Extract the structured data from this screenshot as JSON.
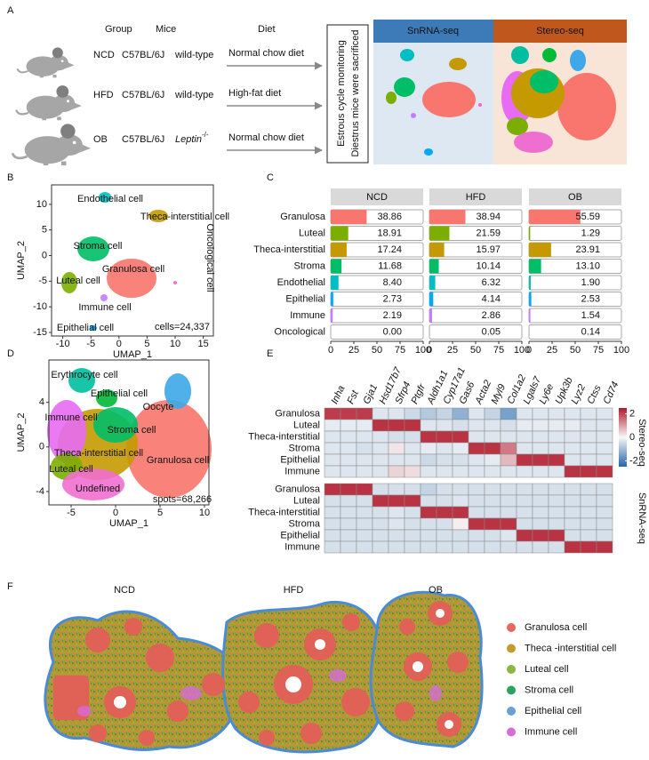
{
  "panel_labels": [
    "A",
    "B",
    "C",
    "D",
    "E",
    "F"
  ],
  "panel_a": {
    "headers": [
      "Group",
      "Mice",
      "Diet"
    ],
    "rows": [
      {
        "group": "NCD",
        "strain": "C57BL/6J",
        "genotype": "wild-type",
        "diet": "Normal chow diet"
      },
      {
        "group": "HFD",
        "strain": "C57BL/6J",
        "genotype": "wild-type",
        "diet": "High-fat diet"
      },
      {
        "group": "OB",
        "strain": "C57BL/6J",
        "genotype": "Leptin",
        "genotype_superscript": "-/-",
        "diet": "Normal chow diet"
      }
    ],
    "box_text": [
      "Estrous cycle monitoring",
      "Diestrus mice were sacrificed"
    ],
    "methods": [
      "SnRNA-seq",
      "Stereo-seq"
    ]
  },
  "chart_data": [
    {
      "type": "scatter",
      "x_label": "UMAP_1",
      "y_label": "UMAP_2",
      "xlim": [
        -12,
        16.8
      ],
      "ylim": [
        -15.7,
        13.8
      ],
      "xticks": [
        -10,
        -5,
        0,
        5,
        10,
        15
      ],
      "yticks": [
        10,
        5,
        0,
        -5,
        -10,
        -15
      ],
      "cluster_labels": [
        "Endothelial cell",
        "Theca-interstitial cell",
        "Stroma cell",
        "Granulosa cell",
        "Luteal cell",
        "Immune cell",
        "Epithelial cell"
      ],
      "side_label": "Oncological cell",
      "annotation": "cells=24,337"
    },
    {
      "type": "bar",
      "orientation": "horizontal",
      "categories": [
        "Granulosa",
        "Luteal",
        "Theca-interstitial",
        "Stroma",
        "Endothelial",
        "Epithelial",
        "Immune",
        "Oncological"
      ],
      "colors": [
        "#f8766d",
        "#7cae00",
        "#c49a00",
        "#00be67",
        "#00bfc4",
        "#00a9ff",
        "#c77cff",
        "#ff61c3"
      ],
      "series": [
        {
          "name": "NCD",
          "values": [
            38.86,
            18.91,
            17.24,
            11.68,
            8.4,
            2.73,
            2.19,
            0
          ],
          "value_labels": [
            "38.86",
            "18.91",
            "17.24",
            "11.68",
            "8.40",
            "2.73",
            "2.19",
            "0.00"
          ]
        },
        {
          "name": "HFD",
          "values": [
            38.94,
            21.59,
            15.97,
            10.14,
            6.32,
            4.14,
            2.86,
            0.05
          ],
          "value_labels": [
            "38.94",
            "21.59",
            "15.97",
            "10.14",
            "6.32",
            "4.14",
            "2.86",
            "0.05"
          ]
        },
        {
          "name": "OB",
          "values": [
            55.59,
            1.29,
            23.91,
            13.1,
            1.9,
            2.53,
            1.54,
            0.14
          ],
          "value_labels": [
            "55.59",
            "1.29",
            "23.91",
            "13.10",
            "1.90",
            "2.53",
            "1.54",
            "0.14"
          ]
        }
      ],
      "xlim": [
        0,
        100
      ],
      "xticks": [
        0,
        25,
        50,
        75,
        100
      ]
    },
    {
      "type": "scatter",
      "x_label": "UMAP_1",
      "y_label": "UMAP_2",
      "xlim": [
        -7.5,
        10.5
      ],
      "ylim": [
        -5.2,
        7.8
      ],
      "xticks": [
        -5,
        0,
        5,
        10
      ],
      "yticks": [
        4,
        0,
        -4
      ],
      "cluster_labels": [
        "Erythrocyte cell",
        "Epithelial cell",
        "Oocyte",
        "Immune cell",
        "Stroma cell",
        "Theca-interstitial cell",
        "Luteal cell",
        "Granulosa cell",
        "Undefined"
      ],
      "annotation": "spots=68,266"
    },
    {
      "type": "heatmap",
      "columns": [
        "Inha",
        "Fst",
        "Gja1",
        "Hsd17b7",
        "Sfrp4",
        "Ptgfr",
        "Aldh1a1",
        "Cyp17a1",
        "Gas6",
        "Acta2",
        "Myl9",
        "Col1a2",
        "Lgals7",
        "Ly6e",
        "Upk3b",
        "Lyz2",
        "Ctss",
        "Cd74"
      ],
      "groups": [
        {
          "name": "Stereo-seq",
          "rows": [
            "Granulosa",
            "Luteal",
            "Theca-interstitial",
            "Stroma",
            "Epithelial",
            "Immune"
          ],
          "values": [
            [
              2.1,
              2.1,
              2.1,
              -0.3,
              -0.3,
              -0.5,
              -0.8,
              -0.6,
              -1.2,
              -0.3,
              -0.6,
              -1.5,
              -0.3,
              -0.3,
              -0.3,
              -0.3,
              -0.3,
              -0.3
            ],
            [
              -0.2,
              -0.2,
              -0.2,
              2.2,
              2.2,
              2.2,
              -0.3,
              -0.3,
              -0.4,
              -0.3,
              -0.3,
              -0.4,
              -0.2,
              -0.2,
              -0.2,
              -0.2,
              -0.3,
              -0.3
            ],
            [
              -0.3,
              -0.3,
              -0.3,
              -0.3,
              -0.4,
              -0.4,
              2.2,
              2.2,
              2.2,
              -0.3,
              -0.3,
              -0.3,
              -0.3,
              -0.3,
              -0.3,
              -0.3,
              -0.3,
              -0.3
            ],
            [
              -0.3,
              -0.3,
              -0.4,
              -0.3,
              0.2,
              -0.3,
              -0.2,
              -0.3,
              -0.2,
              2.2,
              2.2,
              1.4,
              -0.3,
              -0.3,
              -0.3,
              -0.3,
              -0.3,
              -0.3
            ],
            [
              -0.3,
              -0.3,
              -0.3,
              -0.3,
              -0.3,
              -0.3,
              -0.5,
              -0.4,
              -0.4,
              -0.3,
              -0.2,
              0.7,
              2.2,
              2.2,
              2.2,
              -0.3,
              -0.3,
              -0.3
            ],
            [
              -0.3,
              -0.3,
              -0.3,
              -0.3,
              0.4,
              0.3,
              -0.3,
              -0.3,
              -0.3,
              -0.3,
              -0.3,
              -0.3,
              -0.3,
              -0.3,
              -0.3,
              2.2,
              2.2,
              2.2
            ]
          ]
        },
        {
          "name": "SnRNA-seq",
          "rows": [
            "Granulosa",
            "Luteal",
            "Theca-interstitial",
            "Stroma",
            "Epithelial",
            "Immune"
          ],
          "values": [
            [
              2.2,
              2.2,
              2.2,
              -0.4,
              -0.4,
              -0.4,
              -0.6,
              -0.4,
              -0.4,
              -0.4,
              -0.4,
              -0.4,
              -0.4,
              -0.4,
              -0.4,
              -0.4,
              -0.4,
              -0.4
            ],
            [
              -0.4,
              -0.4,
              -0.4,
              2.2,
              2.2,
              2.2,
              -0.4,
              -0.4,
              -0.3,
              -0.4,
              -0.4,
              -0.4,
              -0.4,
              -0.4,
              -0.4,
              -0.4,
              -0.4,
              -0.4
            ],
            [
              -0.4,
              -0.4,
              -0.4,
              -0.4,
              -0.3,
              -0.4,
              2.2,
              2.2,
              2.2,
              -0.4,
              -0.4,
              -0.4,
              -0.4,
              -0.4,
              -0.4,
              -0.4,
              -0.4,
              -0.4
            ],
            [
              -0.4,
              -0.4,
              -0.4,
              -0.4,
              -0.3,
              -0.4,
              -0.4,
              -0.4,
              0.1,
              2.2,
              2.2,
              2.2,
              -0.4,
              -0.4,
              -0.4,
              -0.4,
              -0.4,
              -0.4
            ],
            [
              -0.4,
              -0.4,
              -0.4,
              -0.4,
              -0.4,
              -0.4,
              -0.4,
              -0.4,
              -0.4,
              -0.4,
              -0.4,
              -0.3,
              2.2,
              2.2,
              2.2,
              -0.4,
              -0.4,
              -0.4
            ],
            [
              -0.4,
              -0.4,
              -0.4,
              -0.4,
              -0.4,
              -0.4,
              -0.4,
              -0.4,
              -0.4,
              -0.4,
              -0.4,
              -0.4,
              -0.4,
              -0.4,
              -0.4,
              2.2,
              2.2,
              2.2
            ]
          ]
        }
      ],
      "zlim": [
        -2.5,
        2.5
      ],
      "colorbar_ticks": [
        2,
        0,
        -2
      ]
    }
  ],
  "panel_f": {
    "samples": [
      "NCD",
      "HFD",
      "OB"
    ],
    "legend": [
      {
        "name": "Granulosa cell",
        "color": "#e8675f"
      },
      {
        "name": "Theca -interstitial cell",
        "color": "#c49a2b"
      },
      {
        "name": "Luteal cell",
        "color": "#8db544"
      },
      {
        "name": "Stroma cell",
        "color": "#2aa35b"
      },
      {
        "name": "Epithelial cell",
        "color": "#6aa0d8"
      },
      {
        "name": "Immune cell",
        "color": "#d66dd6"
      }
    ]
  }
}
